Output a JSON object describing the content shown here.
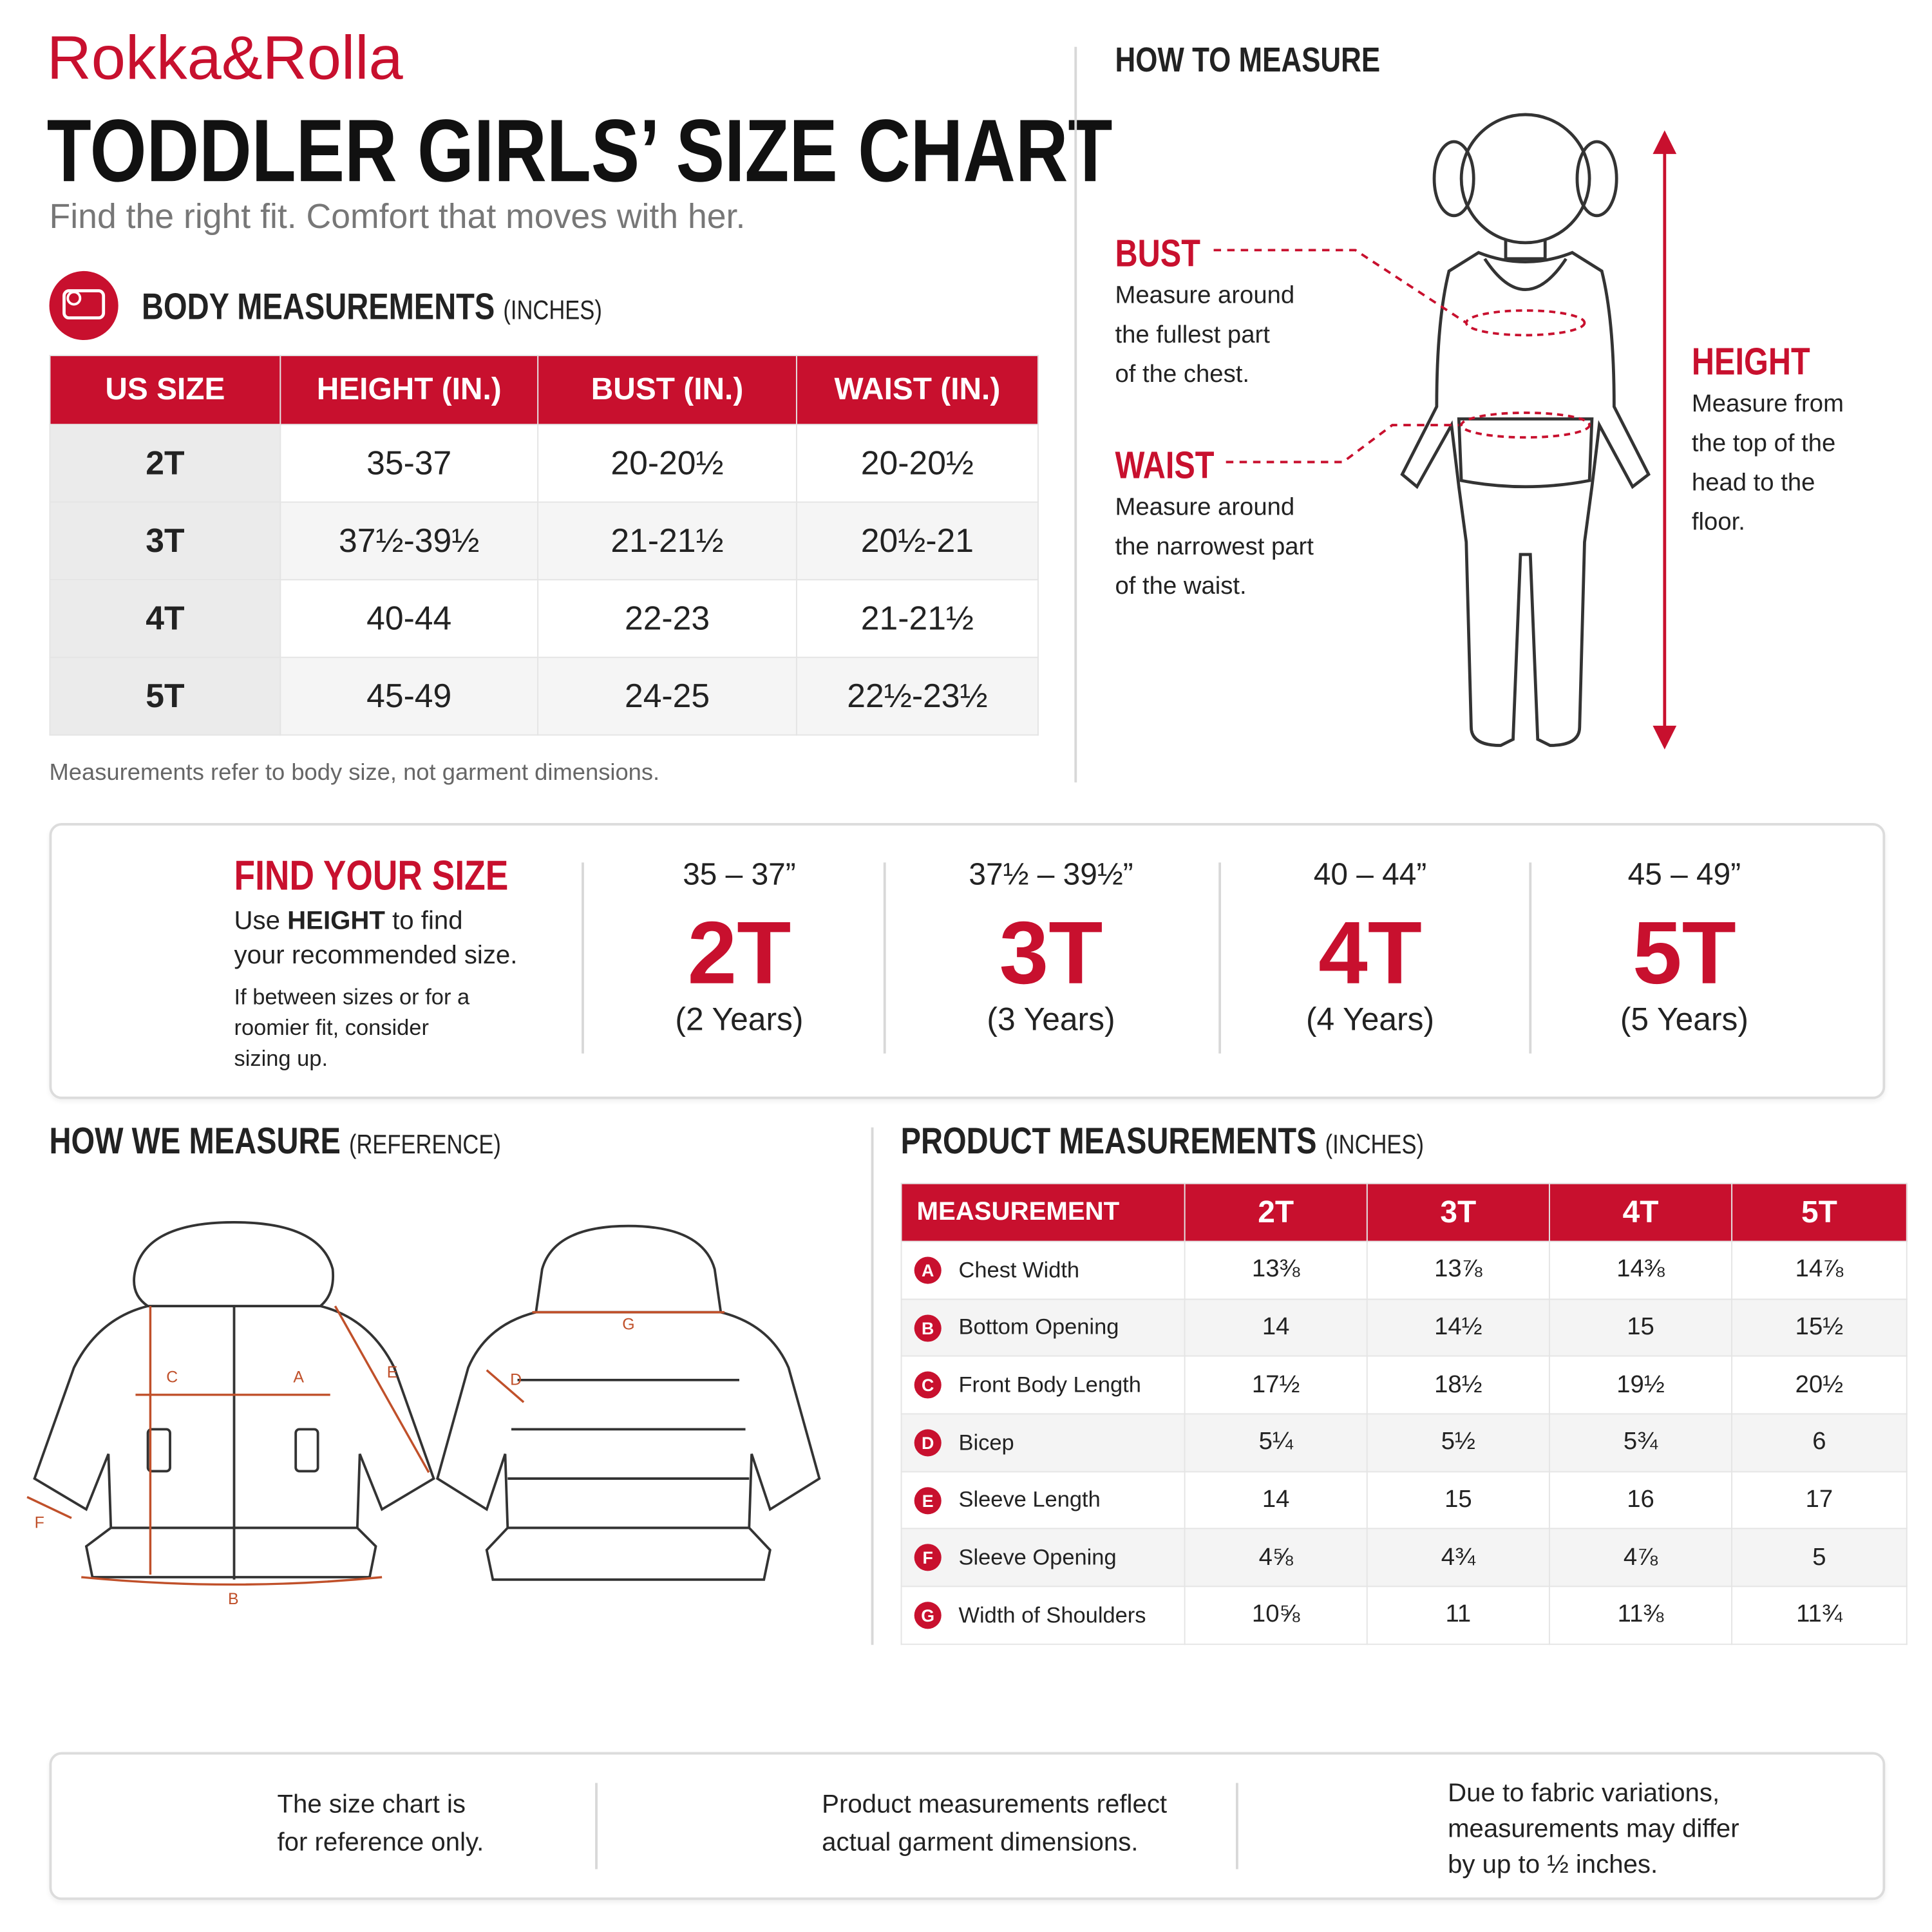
{
  "brand": "Rokka&Rolla",
  "title": "TODDLER GIRLS’ SIZE CHART",
  "subtitle": "Find the right fit. Comfort that moves with her.",
  "body_measurements": {
    "heading": "BODY MEASUREMENTS",
    "unit": "(INCHES)",
    "columns": [
      "US SIZE",
      "HEIGHT (IN.)",
      "BUST (IN.)",
      "WAIST (IN.)"
    ],
    "rows": [
      [
        "2T",
        "35-37",
        "20-20½",
        "20-20½"
      ],
      [
        "3T",
        "37½-39½",
        "21-21½",
        "20½-21"
      ],
      [
        "4T",
        "40-44",
        "22-23",
        "21-21½"
      ],
      [
        "5T",
        "45-49",
        "24-25",
        "22½-23½"
      ]
    ],
    "note": "Measurements refer to body size, not garment dimensions."
  },
  "how_to_measure": {
    "heading": "HOW TO MEASURE",
    "items": [
      {
        "label": "BUST",
        "lines": [
          "Measure around",
          "the fullest part",
          "of the chest."
        ]
      },
      {
        "label": "WAIST",
        "lines": [
          "Measure around",
          "the narrowest part",
          "of the waist."
        ]
      },
      {
        "label": "HEIGHT",
        "lines": [
          "Measure from",
          "the top of the",
          "head to the",
          "floor."
        ]
      }
    ]
  },
  "find_your_size": {
    "heading": "FIND YOUR SIZE",
    "intro": [
      "Use ",
      "HEIGHT",
      " to find",
      "your recommended size."
    ],
    "tip": [
      "If between sizes or for a",
      "roomier fit, consider",
      "sizing up."
    ],
    "sizes": [
      {
        "range": "35 – 37”",
        "size": "2T",
        "age": "(2 Years)"
      },
      {
        "range": "37½ – 39½”",
        "size": "3T",
        "age": "(3 Years)"
      },
      {
        "range": "40 – 44”",
        "size": "4T",
        "age": "(4 Years)"
      },
      {
        "range": "45 – 49”",
        "size": "5T",
        "age": "(5 Years)"
      }
    ]
  },
  "how_we_measure": {
    "heading": "HOW WE MEASURE",
    "note": "(REFERENCE)",
    "labels": [
      "C",
      "A",
      "E",
      "F",
      "B",
      "G",
      "D"
    ]
  },
  "product_measurements": {
    "heading": "PRODUCT MEASUREMENTS",
    "unit": "(INCHES)",
    "columns": [
      "MEASUREMENT",
      "2T",
      "3T",
      "4T",
      "5T"
    ],
    "rows": [
      {
        "key": "A",
        "name": "Chest Width",
        "values": [
          "13⅜",
          "13⅞",
          "14⅜",
          "14⅞"
        ]
      },
      {
        "key": "B",
        "name": "Bottom Opening",
        "values": [
          "14",
          "14½",
          "15",
          "15½"
        ]
      },
      {
        "key": "C",
        "name": "Front Body Length",
        "values": [
          "17½",
          "18½",
          "19½",
          "20½"
        ]
      },
      {
        "key": "D",
        "name": "Bicep",
        "values": [
          "5¼",
          "5½",
          "5¾",
          "6"
        ]
      },
      {
        "key": "E",
        "name": "Sleeve Length",
        "values": [
          "14",
          "15",
          "16",
          "17"
        ]
      },
      {
        "key": "F",
        "name": "Sleeve Opening",
        "values": [
          "4⅝",
          "4¾",
          "4⅞",
          "5"
        ]
      },
      {
        "key": "G",
        "name": "Width of Shoulders",
        "values": [
          "10⅝",
          "11",
          "11⅜",
          "11¾"
        ]
      }
    ]
  },
  "footer": [
    [
      "The size chart is",
      "for reference only."
    ],
    [
      "Product measurements reflect",
      "actual garment dimensions."
    ],
    [
      "Due to fabric variations,",
      "measurements may differ",
      "by up to ½ inches."
    ]
  ]
}
